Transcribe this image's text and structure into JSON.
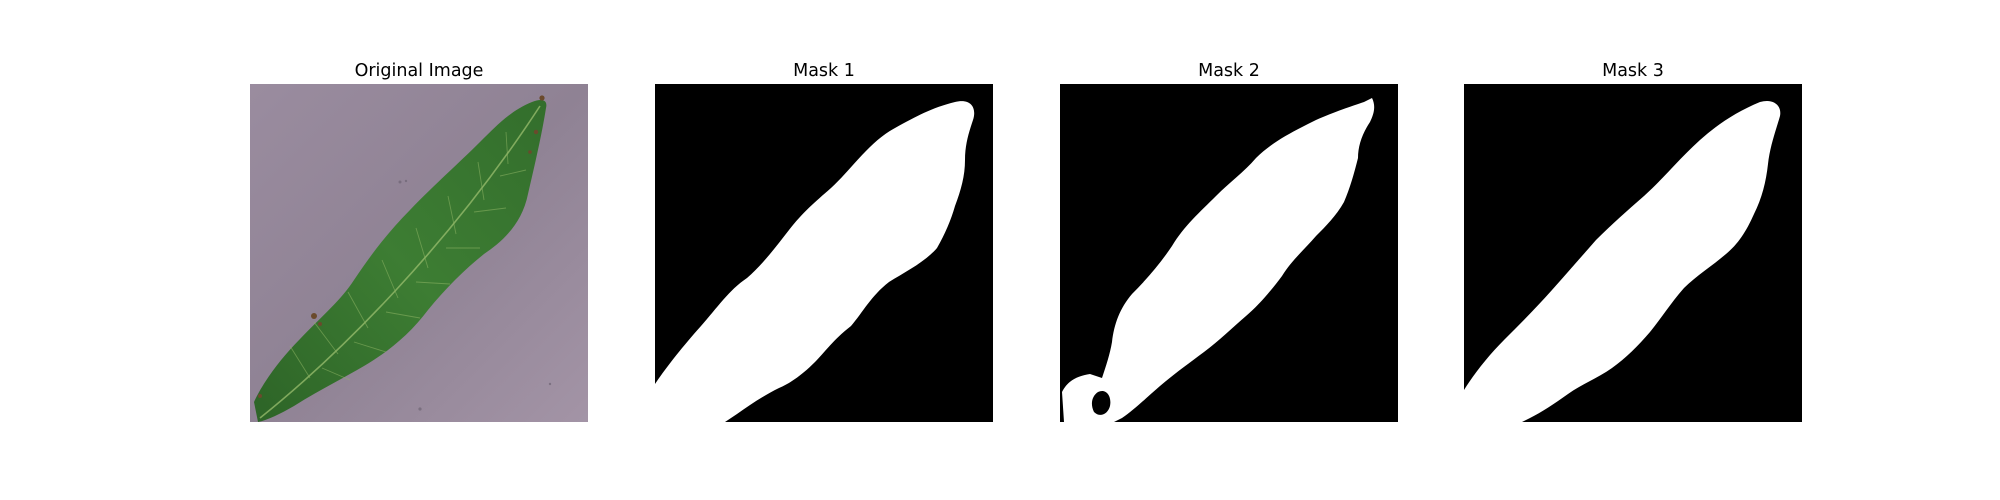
{
  "figure": {
    "panels": [
      {
        "title": "Original Image",
        "kind": "photo"
      },
      {
        "title": "Mask 1",
        "kind": "mask"
      },
      {
        "title": "Mask 2",
        "kind": "mask"
      },
      {
        "title": "Mask 3",
        "kind": "mask"
      }
    ]
  },
  "colors": {
    "background_purple": "#8e8093",
    "background_purple_light": "#a596a8",
    "leaf_dark": "#2f6a2a",
    "leaf_mid": "#3f8234",
    "leaf_vein": "#9bbf6f",
    "leaf_spot": "#6a4a2c",
    "mask_background": "#000000",
    "mask_foreground": "#ffffff"
  },
  "icons": {
    "photo": "leaf-photo",
    "mask": "segmentation-mask"
  }
}
